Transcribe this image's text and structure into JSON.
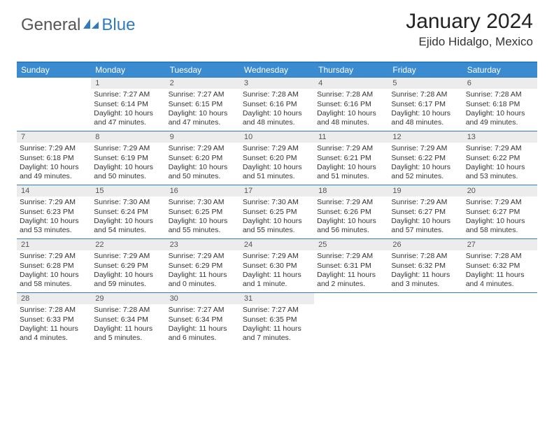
{
  "brand": {
    "part1": "General",
    "part2": "Blue"
  },
  "title": "January 2024",
  "location": "Ejido Hidalgo, Mexico",
  "colors": {
    "header_bg": "#3b8bd1",
    "border": "#2f7bbf",
    "daynum_bg": "#ececec",
    "text": "#333333"
  },
  "day_names": [
    "Sunday",
    "Monday",
    "Tuesday",
    "Wednesday",
    "Thursday",
    "Friday",
    "Saturday"
  ],
  "first_weekday_index": 1,
  "days": [
    {
      "n": 1,
      "sunrise": "7:27 AM",
      "sunset": "6:14 PM",
      "daylight": "10 hours and 47 minutes."
    },
    {
      "n": 2,
      "sunrise": "7:27 AM",
      "sunset": "6:15 PM",
      "daylight": "10 hours and 47 minutes."
    },
    {
      "n": 3,
      "sunrise": "7:28 AM",
      "sunset": "6:16 PM",
      "daylight": "10 hours and 48 minutes."
    },
    {
      "n": 4,
      "sunrise": "7:28 AM",
      "sunset": "6:16 PM",
      "daylight": "10 hours and 48 minutes."
    },
    {
      "n": 5,
      "sunrise": "7:28 AM",
      "sunset": "6:17 PM",
      "daylight": "10 hours and 48 minutes."
    },
    {
      "n": 6,
      "sunrise": "7:28 AM",
      "sunset": "6:18 PM",
      "daylight": "10 hours and 49 minutes."
    },
    {
      "n": 7,
      "sunrise": "7:29 AM",
      "sunset": "6:18 PM",
      "daylight": "10 hours and 49 minutes."
    },
    {
      "n": 8,
      "sunrise": "7:29 AM",
      "sunset": "6:19 PM",
      "daylight": "10 hours and 50 minutes."
    },
    {
      "n": 9,
      "sunrise": "7:29 AM",
      "sunset": "6:20 PM",
      "daylight": "10 hours and 50 minutes."
    },
    {
      "n": 10,
      "sunrise": "7:29 AM",
      "sunset": "6:20 PM",
      "daylight": "10 hours and 51 minutes."
    },
    {
      "n": 11,
      "sunrise": "7:29 AM",
      "sunset": "6:21 PM",
      "daylight": "10 hours and 51 minutes."
    },
    {
      "n": 12,
      "sunrise": "7:29 AM",
      "sunset": "6:22 PM",
      "daylight": "10 hours and 52 minutes."
    },
    {
      "n": 13,
      "sunrise": "7:29 AM",
      "sunset": "6:22 PM",
      "daylight": "10 hours and 53 minutes."
    },
    {
      "n": 14,
      "sunrise": "7:29 AM",
      "sunset": "6:23 PM",
      "daylight": "10 hours and 53 minutes."
    },
    {
      "n": 15,
      "sunrise": "7:30 AM",
      "sunset": "6:24 PM",
      "daylight": "10 hours and 54 minutes."
    },
    {
      "n": 16,
      "sunrise": "7:30 AM",
      "sunset": "6:25 PM",
      "daylight": "10 hours and 55 minutes."
    },
    {
      "n": 17,
      "sunrise": "7:30 AM",
      "sunset": "6:25 PM",
      "daylight": "10 hours and 55 minutes."
    },
    {
      "n": 18,
      "sunrise": "7:29 AM",
      "sunset": "6:26 PM",
      "daylight": "10 hours and 56 minutes."
    },
    {
      "n": 19,
      "sunrise": "7:29 AM",
      "sunset": "6:27 PM",
      "daylight": "10 hours and 57 minutes."
    },
    {
      "n": 20,
      "sunrise": "7:29 AM",
      "sunset": "6:27 PM",
      "daylight": "10 hours and 58 minutes."
    },
    {
      "n": 21,
      "sunrise": "7:29 AM",
      "sunset": "6:28 PM",
      "daylight": "10 hours and 58 minutes."
    },
    {
      "n": 22,
      "sunrise": "7:29 AM",
      "sunset": "6:29 PM",
      "daylight": "10 hours and 59 minutes."
    },
    {
      "n": 23,
      "sunrise": "7:29 AM",
      "sunset": "6:29 PM",
      "daylight": "11 hours and 0 minutes."
    },
    {
      "n": 24,
      "sunrise": "7:29 AM",
      "sunset": "6:30 PM",
      "daylight": "11 hours and 1 minute."
    },
    {
      "n": 25,
      "sunrise": "7:29 AM",
      "sunset": "6:31 PM",
      "daylight": "11 hours and 2 minutes."
    },
    {
      "n": 26,
      "sunrise": "7:28 AM",
      "sunset": "6:32 PM",
      "daylight": "11 hours and 3 minutes."
    },
    {
      "n": 27,
      "sunrise": "7:28 AM",
      "sunset": "6:32 PM",
      "daylight": "11 hours and 4 minutes."
    },
    {
      "n": 28,
      "sunrise": "7:28 AM",
      "sunset": "6:33 PM",
      "daylight": "11 hours and 4 minutes."
    },
    {
      "n": 29,
      "sunrise": "7:28 AM",
      "sunset": "6:34 PM",
      "daylight": "11 hours and 5 minutes."
    },
    {
      "n": 30,
      "sunrise": "7:27 AM",
      "sunset": "6:34 PM",
      "daylight": "11 hours and 6 minutes."
    },
    {
      "n": 31,
      "sunrise": "7:27 AM",
      "sunset": "6:35 PM",
      "daylight": "11 hours and 7 minutes."
    }
  ],
  "labels": {
    "sunrise": "Sunrise:",
    "sunset": "Sunset:",
    "daylight": "Daylight:"
  }
}
